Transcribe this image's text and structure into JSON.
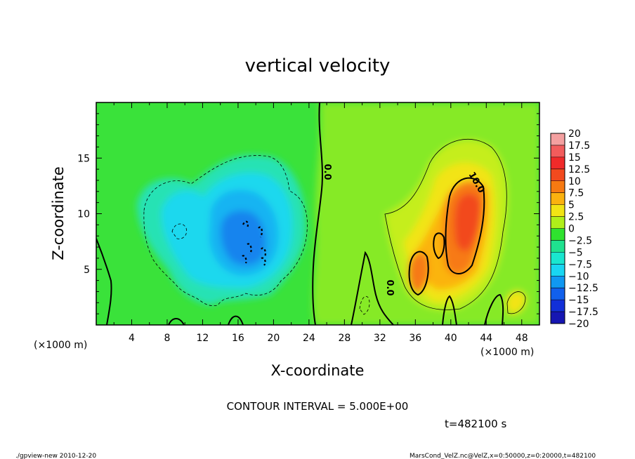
{
  "chart_data": {
    "type": "heatmap",
    "title": "vertical velocity",
    "xlabel": "X-coordinate",
    "ylabel": "Z-coordinate",
    "x_unit": "(×1000 m)",
    "y_unit": "(×1000 m)",
    "xlim": [
      0,
      50
    ],
    "ylim": [
      0,
      20
    ],
    "x_ticks": [
      "4",
      "8",
      "12",
      "16",
      "20",
      "24",
      "28",
      "32",
      "36",
      "40",
      "44",
      "48"
    ],
    "y_ticks": [
      "5",
      "10",
      "15"
    ],
    "colorbar": {
      "labels": [
        "20",
        "17.5",
        "15",
        "12.5",
        "10",
        "7.5",
        "5",
        "2.5",
        "0",
        "−2.5",
        "−5",
        "−7.5",
        "−10",
        "−12.5",
        "−15",
        "−17.5",
        "−20"
      ],
      "values": [
        20,
        17.5,
        15,
        12.5,
        10,
        7.5,
        5,
        2.5,
        0,
        -2.5,
        -5,
        -7.5,
        -10,
        -12.5,
        -15,
        -17.5,
        -20
      ],
      "colors": [
        "#f4a0a0",
        "#f25c5c",
        "#f02a2a",
        "#f24a1e",
        "#f77a12",
        "#fbb20f",
        "#f2e414",
        "#b0ef1a",
        "#2fe22f",
        "#1fe28f",
        "#19e6cf",
        "#19d6f2",
        "#1098f2",
        "#1160ec",
        "#1230d8",
        "#1616b2",
        "#6a16c2"
      ]
    },
    "contour_interval_text": "CONTOUR INTERVAL = 5.000E+00",
    "contour_labels": [
      "0.0",
      "0.0",
      "10.0"
    ],
    "features": [
      {
        "name": "updraft",
        "x": 41.5,
        "z": 10,
        "peak": 13
      },
      {
        "name": "updraft",
        "x": 36,
        "z": 5,
        "peak": 11
      },
      {
        "name": "downdraft",
        "x": 17.5,
        "z": 8,
        "peak": -10
      }
    ],
    "time_text": "t=482100 s"
  },
  "footer": {
    "left": "./gpview-new  2010-12-20",
    "right": "MarsCond_VelZ.nc@VelZ,x=0:50000,z=0:20000,t=482100"
  }
}
